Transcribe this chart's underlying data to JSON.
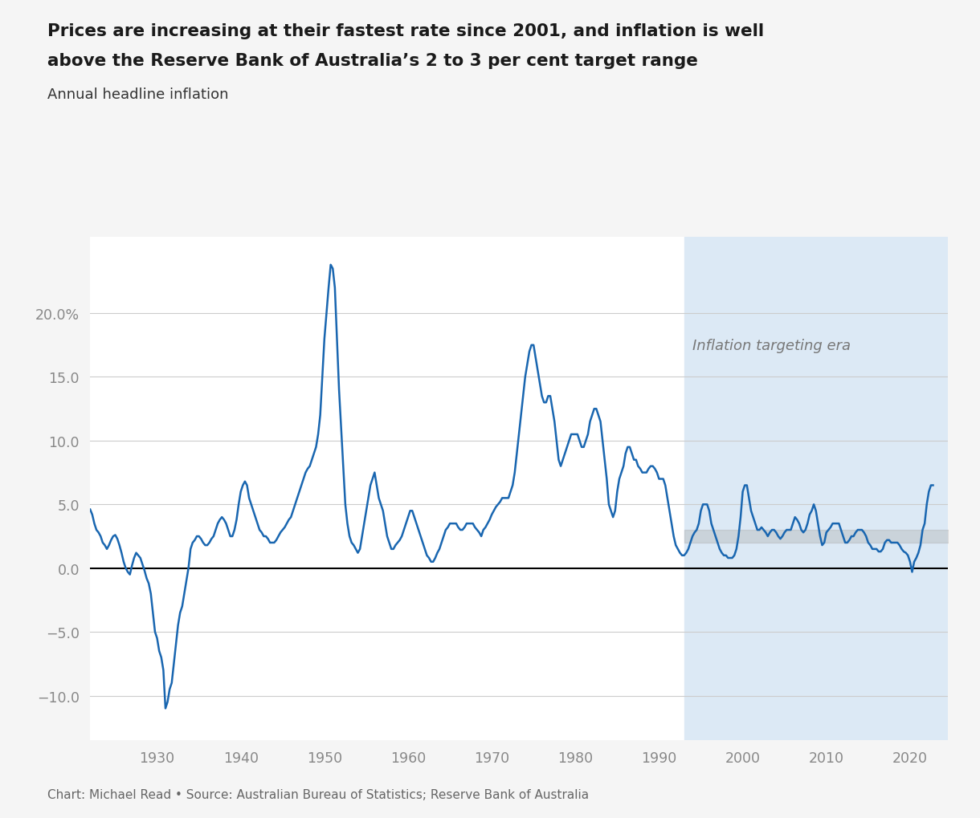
{
  "title_line1": "Prices are increasing at their fastest rate since 2001, and inflation is well",
  "title_line2": "above the Reserve Bank of Australia’s 2 to 3 per cent target range",
  "subtitle": "Annual headline inflation",
  "source": "Chart: Michael Read • Source: Australian Bureau of Statistics; Reserve Bank of Australia",
  "inflation_targeting_label": "Inflation targeting era",
  "inflation_targeting_start": 1993.0,
  "target_band_low": 2.0,
  "target_band_high": 3.0,
  "line_color": "#1966b0",
  "target_band_color": "#aaaaaa",
  "shading_color": "#dce9f5",
  "bg_color": "#f5f5f5",
  "plot_bg_color": "#ffffff",
  "y_ticks": [
    -10.0,
    -5.0,
    0.0,
    5.0,
    10.0,
    15.0,
    20.0
  ],
  "ylim": [
    -13.5,
    26.0
  ],
  "xlim_start": 1922.0,
  "xlim_end": 2024.5,
  "data": [
    [
      1922.0,
      4.6
    ],
    [
      1922.25,
      4.2
    ],
    [
      1922.5,
      3.5
    ],
    [
      1922.75,
      3.0
    ],
    [
      1923.0,
      2.8
    ],
    [
      1923.25,
      2.5
    ],
    [
      1923.5,
      2.0
    ],
    [
      1923.75,
      1.8
    ],
    [
      1924.0,
      1.5
    ],
    [
      1924.25,
      1.8
    ],
    [
      1924.5,
      2.2
    ],
    [
      1924.75,
      2.5
    ],
    [
      1925.0,
      2.6
    ],
    [
      1925.25,
      2.3
    ],
    [
      1925.5,
      1.8
    ],
    [
      1925.75,
      1.2
    ],
    [
      1926.0,
      0.5
    ],
    [
      1926.25,
      0.0
    ],
    [
      1926.5,
      -0.3
    ],
    [
      1926.75,
      -0.5
    ],
    [
      1927.0,
      0.2
    ],
    [
      1927.25,
      0.8
    ],
    [
      1927.5,
      1.2
    ],
    [
      1927.75,
      1.0
    ],
    [
      1928.0,
      0.8
    ],
    [
      1928.25,
      0.3
    ],
    [
      1928.5,
      -0.2
    ],
    [
      1928.75,
      -0.8
    ],
    [
      1929.0,
      -1.2
    ],
    [
      1929.25,
      -2.0
    ],
    [
      1929.5,
      -3.5
    ],
    [
      1929.75,
      -5.0
    ],
    [
      1930.0,
      -5.5
    ],
    [
      1930.25,
      -6.5
    ],
    [
      1930.5,
      -7.0
    ],
    [
      1930.75,
      -8.0
    ],
    [
      1931.0,
      -11.0
    ],
    [
      1931.25,
      -10.5
    ],
    [
      1931.5,
      -9.5
    ],
    [
      1931.75,
      -9.0
    ],
    [
      1932.0,
      -7.5
    ],
    [
      1932.25,
      -6.0
    ],
    [
      1932.5,
      -4.5
    ],
    [
      1932.75,
      -3.5
    ],
    [
      1933.0,
      -3.0
    ],
    [
      1933.25,
      -2.0
    ],
    [
      1933.5,
      -1.0
    ],
    [
      1933.75,
      0.0
    ],
    [
      1934.0,
      1.5
    ],
    [
      1934.25,
      2.0
    ],
    [
      1934.5,
      2.2
    ],
    [
      1934.75,
      2.5
    ],
    [
      1935.0,
      2.5
    ],
    [
      1935.25,
      2.3
    ],
    [
      1935.5,
      2.0
    ],
    [
      1935.75,
      1.8
    ],
    [
      1936.0,
      1.8
    ],
    [
      1936.25,
      2.0
    ],
    [
      1936.5,
      2.3
    ],
    [
      1936.75,
      2.5
    ],
    [
      1937.0,
      3.0
    ],
    [
      1937.25,
      3.5
    ],
    [
      1937.5,
      3.8
    ],
    [
      1937.75,
      4.0
    ],
    [
      1938.0,
      3.8
    ],
    [
      1938.25,
      3.5
    ],
    [
      1938.5,
      3.0
    ],
    [
      1938.75,
      2.5
    ],
    [
      1939.0,
      2.5
    ],
    [
      1939.25,
      3.0
    ],
    [
      1939.5,
      3.8
    ],
    [
      1939.75,
      5.0
    ],
    [
      1940.0,
      6.0
    ],
    [
      1940.25,
      6.5
    ],
    [
      1940.5,
      6.8
    ],
    [
      1940.75,
      6.5
    ],
    [
      1941.0,
      5.5
    ],
    [
      1941.25,
      5.0
    ],
    [
      1941.5,
      4.5
    ],
    [
      1941.75,
      4.0
    ],
    [
      1942.0,
      3.5
    ],
    [
      1942.25,
      3.0
    ],
    [
      1942.5,
      2.8
    ],
    [
      1942.75,
      2.5
    ],
    [
      1943.0,
      2.5
    ],
    [
      1943.25,
      2.3
    ],
    [
      1943.5,
      2.0
    ],
    [
      1943.75,
      2.0
    ],
    [
      1944.0,
      2.0
    ],
    [
      1944.25,
      2.2
    ],
    [
      1944.5,
      2.5
    ],
    [
      1944.75,
      2.8
    ],
    [
      1945.0,
      3.0
    ],
    [
      1945.25,
      3.2
    ],
    [
      1945.5,
      3.5
    ],
    [
      1945.75,
      3.8
    ],
    [
      1946.0,
      4.0
    ],
    [
      1946.25,
      4.5
    ],
    [
      1946.5,
      5.0
    ],
    [
      1946.75,
      5.5
    ],
    [
      1947.0,
      6.0
    ],
    [
      1947.25,
      6.5
    ],
    [
      1947.5,
      7.0
    ],
    [
      1947.75,
      7.5
    ],
    [
      1948.0,
      7.8
    ],
    [
      1948.25,
      8.0
    ],
    [
      1948.5,
      8.5
    ],
    [
      1948.75,
      9.0
    ],
    [
      1949.0,
      9.5
    ],
    [
      1949.25,
      10.5
    ],
    [
      1949.5,
      12.0
    ],
    [
      1949.75,
      15.0
    ],
    [
      1950.0,
      18.0
    ],
    [
      1950.25,
      20.0
    ],
    [
      1950.5,
      22.0
    ],
    [
      1950.75,
      23.8
    ],
    [
      1951.0,
      23.5
    ],
    [
      1951.25,
      22.0
    ],
    [
      1951.5,
      18.0
    ],
    [
      1951.75,
      14.0
    ],
    [
      1952.0,
      11.0
    ],
    [
      1952.25,
      8.0
    ],
    [
      1952.5,
      5.0
    ],
    [
      1952.75,
      3.5
    ],
    [
      1953.0,
      2.5
    ],
    [
      1953.25,
      2.0
    ],
    [
      1953.5,
      1.8
    ],
    [
      1953.75,
      1.5
    ],
    [
      1954.0,
      1.2
    ],
    [
      1954.25,
      1.5
    ],
    [
      1954.5,
      2.5
    ],
    [
      1954.75,
      3.5
    ],
    [
      1955.0,
      4.5
    ],
    [
      1955.25,
      5.5
    ],
    [
      1955.5,
      6.5
    ],
    [
      1955.75,
      7.0
    ],
    [
      1956.0,
      7.5
    ],
    [
      1956.25,
      6.5
    ],
    [
      1956.5,
      5.5
    ],
    [
      1956.75,
      5.0
    ],
    [
      1957.0,
      4.5
    ],
    [
      1957.25,
      3.5
    ],
    [
      1957.5,
      2.5
    ],
    [
      1957.75,
      2.0
    ],
    [
      1958.0,
      1.5
    ],
    [
      1958.25,
      1.5
    ],
    [
      1958.5,
      1.8
    ],
    [
      1958.75,
      2.0
    ],
    [
      1959.0,
      2.2
    ],
    [
      1959.25,
      2.5
    ],
    [
      1959.5,
      3.0
    ],
    [
      1959.75,
      3.5
    ],
    [
      1960.0,
      4.0
    ],
    [
      1960.25,
      4.5
    ],
    [
      1960.5,
      4.5
    ],
    [
      1960.75,
      4.0
    ],
    [
      1961.0,
      3.5
    ],
    [
      1961.25,
      3.0
    ],
    [
      1961.5,
      2.5
    ],
    [
      1961.75,
      2.0
    ],
    [
      1962.0,
      1.5
    ],
    [
      1962.25,
      1.0
    ],
    [
      1962.5,
      0.8
    ],
    [
      1962.75,
      0.5
    ],
    [
      1963.0,
      0.5
    ],
    [
      1963.25,
      0.8
    ],
    [
      1963.5,
      1.2
    ],
    [
      1963.75,
      1.5
    ],
    [
      1964.0,
      2.0
    ],
    [
      1964.25,
      2.5
    ],
    [
      1964.5,
      3.0
    ],
    [
      1964.75,
      3.2
    ],
    [
      1965.0,
      3.5
    ],
    [
      1965.25,
      3.5
    ],
    [
      1965.5,
      3.5
    ],
    [
      1965.75,
      3.5
    ],
    [
      1966.0,
      3.2
    ],
    [
      1966.25,
      3.0
    ],
    [
      1966.5,
      3.0
    ],
    [
      1966.75,
      3.2
    ],
    [
      1967.0,
      3.5
    ],
    [
      1967.25,
      3.5
    ],
    [
      1967.5,
      3.5
    ],
    [
      1967.75,
      3.5
    ],
    [
      1968.0,
      3.2
    ],
    [
      1968.25,
      3.0
    ],
    [
      1968.5,
      2.8
    ],
    [
      1968.75,
      2.5
    ],
    [
      1969.0,
      3.0
    ],
    [
      1969.25,
      3.2
    ],
    [
      1969.5,
      3.5
    ],
    [
      1969.75,
      3.8
    ],
    [
      1970.0,
      4.2
    ],
    [
      1970.25,
      4.5
    ],
    [
      1970.5,
      4.8
    ],
    [
      1970.75,
      5.0
    ],
    [
      1971.0,
      5.2
    ],
    [
      1971.25,
      5.5
    ],
    [
      1971.5,
      5.5
    ],
    [
      1971.75,
      5.5
    ],
    [
      1972.0,
      5.5
    ],
    [
      1972.25,
      6.0
    ],
    [
      1972.5,
      6.5
    ],
    [
      1972.75,
      7.5
    ],
    [
      1973.0,
      9.0
    ],
    [
      1973.25,
      10.5
    ],
    [
      1973.5,
      12.0
    ],
    [
      1973.75,
      13.5
    ],
    [
      1974.0,
      15.0
    ],
    [
      1974.25,
      16.0
    ],
    [
      1974.5,
      17.0
    ],
    [
      1974.75,
      17.5
    ],
    [
      1975.0,
      17.5
    ],
    [
      1975.25,
      16.5
    ],
    [
      1975.5,
      15.5
    ],
    [
      1975.75,
      14.5
    ],
    [
      1976.0,
      13.5
    ],
    [
      1976.25,
      13.0
    ],
    [
      1976.5,
      13.0
    ],
    [
      1976.75,
      13.5
    ],
    [
      1977.0,
      13.5
    ],
    [
      1977.25,
      12.5
    ],
    [
      1977.5,
      11.5
    ],
    [
      1977.75,
      10.0
    ],
    [
      1978.0,
      8.5
    ],
    [
      1978.25,
      8.0
    ],
    [
      1978.5,
      8.5
    ],
    [
      1978.75,
      9.0
    ],
    [
      1979.0,
      9.5
    ],
    [
      1979.25,
      10.0
    ],
    [
      1979.5,
      10.5
    ],
    [
      1979.75,
      10.5
    ],
    [
      1980.0,
      10.5
    ],
    [
      1980.25,
      10.5
    ],
    [
      1980.5,
      10.0
    ],
    [
      1980.75,
      9.5
    ],
    [
      1981.0,
      9.5
    ],
    [
      1981.25,
      10.0
    ],
    [
      1981.5,
      10.5
    ],
    [
      1981.75,
      11.5
    ],
    [
      1982.0,
      12.0
    ],
    [
      1982.25,
      12.5
    ],
    [
      1982.5,
      12.5
    ],
    [
      1982.75,
      12.0
    ],
    [
      1983.0,
      11.5
    ],
    [
      1983.25,
      10.0
    ],
    [
      1983.5,
      8.5
    ],
    [
      1983.75,
      7.0
    ],
    [
      1984.0,
      5.0
    ],
    [
      1984.25,
      4.5
    ],
    [
      1984.5,
      4.0
    ],
    [
      1984.75,
      4.5
    ],
    [
      1985.0,
      6.0
    ],
    [
      1985.25,
      7.0
    ],
    [
      1985.5,
      7.5
    ],
    [
      1985.75,
      8.0
    ],
    [
      1986.0,
      9.0
    ],
    [
      1986.25,
      9.5
    ],
    [
      1986.5,
      9.5
    ],
    [
      1986.75,
      9.0
    ],
    [
      1987.0,
      8.5
    ],
    [
      1987.25,
      8.5
    ],
    [
      1987.5,
      8.0
    ],
    [
      1987.75,
      7.8
    ],
    [
      1988.0,
      7.5
    ],
    [
      1988.25,
      7.5
    ],
    [
      1988.5,
      7.5
    ],
    [
      1988.75,
      7.8
    ],
    [
      1989.0,
      8.0
    ],
    [
      1989.25,
      8.0
    ],
    [
      1989.5,
      7.8
    ],
    [
      1989.75,
      7.5
    ],
    [
      1990.0,
      7.0
    ],
    [
      1990.25,
      7.0
    ],
    [
      1990.5,
      7.0
    ],
    [
      1990.75,
      6.5
    ],
    [
      1991.0,
      5.5
    ],
    [
      1991.25,
      4.5
    ],
    [
      1991.5,
      3.5
    ],
    [
      1991.75,
      2.5
    ],
    [
      1992.0,
      1.8
    ],
    [
      1992.25,
      1.5
    ],
    [
      1992.5,
      1.2
    ],
    [
      1992.75,
      1.0
    ],
    [
      1993.0,
      1.0
    ],
    [
      1993.25,
      1.2
    ],
    [
      1993.5,
      1.5
    ],
    [
      1993.75,
      2.0
    ],
    [
      1994.0,
      2.5
    ],
    [
      1994.25,
      2.8
    ],
    [
      1994.5,
      3.0
    ],
    [
      1994.75,
      3.5
    ],
    [
      1995.0,
      4.5
    ],
    [
      1995.25,
      5.0
    ],
    [
      1995.5,
      5.0
    ],
    [
      1995.75,
      5.0
    ],
    [
      1996.0,
      4.5
    ],
    [
      1996.25,
      3.5
    ],
    [
      1996.5,
      3.0
    ],
    [
      1996.75,
      2.5
    ],
    [
      1997.0,
      2.0
    ],
    [
      1997.25,
      1.5
    ],
    [
      1997.5,
      1.2
    ],
    [
      1997.75,
      1.0
    ],
    [
      1998.0,
      1.0
    ],
    [
      1998.25,
      0.8
    ],
    [
      1998.5,
      0.8
    ],
    [
      1998.75,
      0.8
    ],
    [
      1999.0,
      1.0
    ],
    [
      1999.25,
      1.5
    ],
    [
      1999.5,
      2.5
    ],
    [
      1999.75,
      4.0
    ],
    [
      2000.0,
      6.0
    ],
    [
      2000.25,
      6.5
    ],
    [
      2000.5,
      6.5
    ],
    [
      2000.75,
      5.5
    ],
    [
      2001.0,
      4.5
    ],
    [
      2001.25,
      4.0
    ],
    [
      2001.5,
      3.5
    ],
    [
      2001.75,
      3.0
    ],
    [
      2002.0,
      3.0
    ],
    [
      2002.25,
      3.2
    ],
    [
      2002.5,
      3.0
    ],
    [
      2002.75,
      2.8
    ],
    [
      2003.0,
      2.5
    ],
    [
      2003.25,
      2.8
    ],
    [
      2003.5,
      3.0
    ],
    [
      2003.75,
      3.0
    ],
    [
      2004.0,
      2.8
    ],
    [
      2004.25,
      2.5
    ],
    [
      2004.5,
      2.3
    ],
    [
      2004.75,
      2.5
    ],
    [
      2005.0,
      2.8
    ],
    [
      2005.25,
      3.0
    ],
    [
      2005.5,
      3.0
    ],
    [
      2005.75,
      3.0
    ],
    [
      2006.0,
      3.5
    ],
    [
      2006.25,
      4.0
    ],
    [
      2006.5,
      3.8
    ],
    [
      2006.75,
      3.5
    ],
    [
      2007.0,
      3.0
    ],
    [
      2007.25,
      2.8
    ],
    [
      2007.5,
      3.0
    ],
    [
      2007.75,
      3.5
    ],
    [
      2008.0,
      4.2
    ],
    [
      2008.25,
      4.5
    ],
    [
      2008.5,
      5.0
    ],
    [
      2008.75,
      4.5
    ],
    [
      2009.0,
      3.5
    ],
    [
      2009.25,
      2.5
    ],
    [
      2009.5,
      1.8
    ],
    [
      2009.75,
      2.0
    ],
    [
      2010.0,
      2.8
    ],
    [
      2010.25,
      3.0
    ],
    [
      2010.5,
      3.2
    ],
    [
      2010.75,
      3.5
    ],
    [
      2011.0,
      3.5
    ],
    [
      2011.25,
      3.5
    ],
    [
      2011.5,
      3.5
    ],
    [
      2011.75,
      3.0
    ],
    [
      2012.0,
      2.5
    ],
    [
      2012.25,
      2.0
    ],
    [
      2012.5,
      2.0
    ],
    [
      2012.75,
      2.2
    ],
    [
      2013.0,
      2.5
    ],
    [
      2013.25,
      2.5
    ],
    [
      2013.5,
      2.8
    ],
    [
      2013.75,
      3.0
    ],
    [
      2014.0,
      3.0
    ],
    [
      2014.25,
      3.0
    ],
    [
      2014.5,
      2.8
    ],
    [
      2014.75,
      2.5
    ],
    [
      2015.0,
      2.0
    ],
    [
      2015.25,
      1.8
    ],
    [
      2015.5,
      1.5
    ],
    [
      2015.75,
      1.5
    ],
    [
      2016.0,
      1.5
    ],
    [
      2016.25,
      1.3
    ],
    [
      2016.5,
      1.3
    ],
    [
      2016.75,
      1.5
    ],
    [
      2017.0,
      2.0
    ],
    [
      2017.25,
      2.2
    ],
    [
      2017.5,
      2.2
    ],
    [
      2017.75,
      2.0
    ],
    [
      2018.0,
      2.0
    ],
    [
      2018.25,
      2.0
    ],
    [
      2018.5,
      2.0
    ],
    [
      2018.75,
      1.8
    ],
    [
      2019.0,
      1.5
    ],
    [
      2019.25,
      1.3
    ],
    [
      2019.5,
      1.2
    ],
    [
      2019.75,
      1.0
    ],
    [
      2020.0,
      0.5
    ],
    [
      2020.25,
      -0.3
    ],
    [
      2020.5,
      0.5
    ],
    [
      2020.75,
      0.8
    ],
    [
      2021.0,
      1.2
    ],
    [
      2021.25,
      1.8
    ],
    [
      2021.5,
      3.0
    ],
    [
      2021.75,
      3.5
    ],
    [
      2022.0,
      5.0
    ],
    [
      2022.25,
      6.0
    ],
    [
      2022.5,
      6.5
    ],
    [
      2022.75,
      6.5
    ]
  ]
}
